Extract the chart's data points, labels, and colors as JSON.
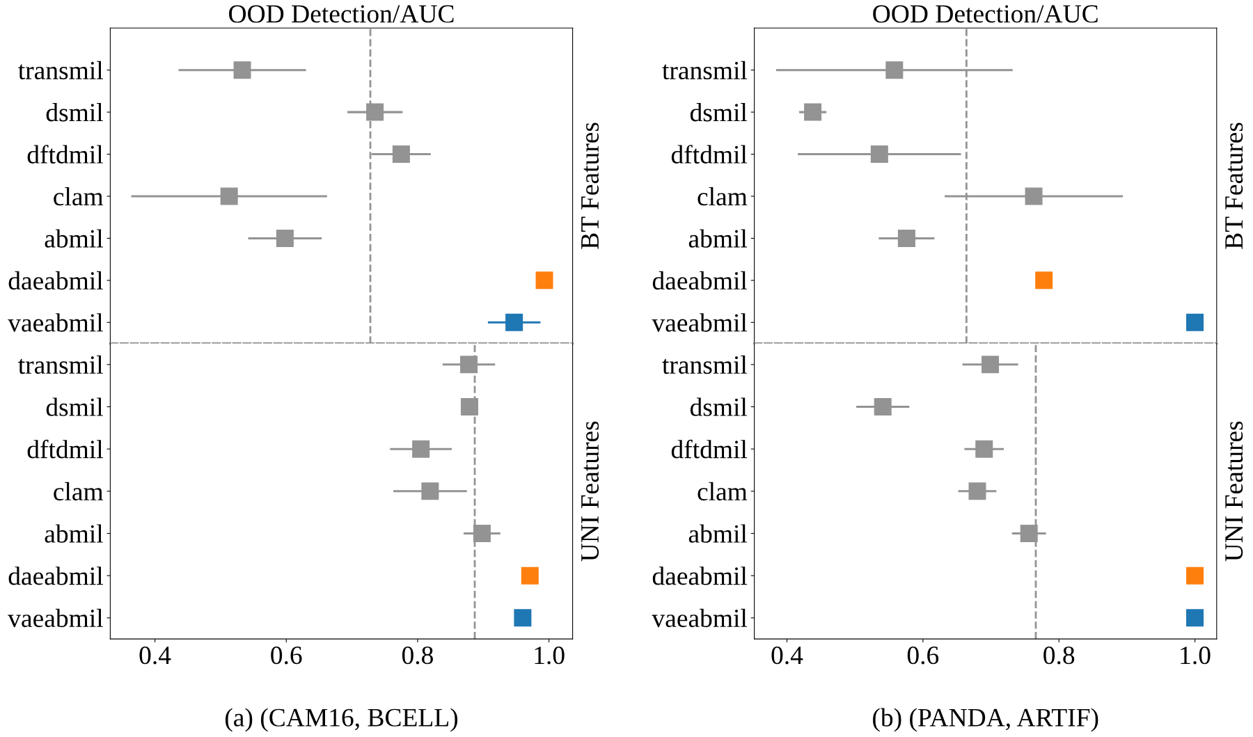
{
  "chart_data": [
    {
      "type": "scatter",
      "orientation": "horizontal",
      "title": "OOD Detection/AUC",
      "ylabel": "BT Features",
      "categories": [
        "transmil",
        "dsmil",
        "dftdmil",
        "clam",
        "abmil",
        "daeabmil",
        "vaeabmil"
      ],
      "values": [
        0.533,
        0.735,
        0.775,
        0.513,
        0.598,
        0.993,
        0.947
      ],
      "errors": [
        0.097,
        0.042,
        0.045,
        0.149,
        0.056,
        null,
        0.04
      ],
      "colors": [
        "#939393",
        "#939393",
        "#939393",
        "#939393",
        "#939393",
        "#ff7f0e",
        "#1f77b4"
      ],
      "marker": "square",
      "xlim": [
        0.332,
        1.036
      ],
      "tick_labels": "y",
      "ref_lines": [
        {
          "axis": "x",
          "value": 0.728,
          "color": "#939393",
          "line_style": "dashed"
        }
      ],
      "grid": false,
      "legend": false
    },
    {
      "type": "scatter",
      "orientation": "horizontal",
      "xlabel": "(a) (CAM16, BCELL)",
      "ylabel": "UNI Features",
      "categories": [
        "transmil",
        "dsmil",
        "dftdmil",
        "clam",
        "abmil",
        "daeabmil",
        "vaeabmil"
      ],
      "values": [
        0.878,
        0.879,
        0.805,
        0.819,
        0.898,
        0.971,
        0.96
      ],
      "errors": [
        0.04,
        null,
        0.047,
        0.056,
        0.028,
        null,
        null
      ],
      "colors": [
        "#939393",
        "#939393",
        "#939393",
        "#939393",
        "#939393",
        "#ff7f0e",
        "#1f77b4"
      ],
      "marker": "square",
      "xlim": [
        0.332,
        1.036
      ],
      "xticks": [
        {
          "value": 0.4,
          "label": "0.4"
        },
        {
          "value": 0.6,
          "label": "0.6"
        },
        {
          "value": 0.8,
          "label": "0.8"
        },
        {
          "value": 1.0,
          "label": "1.0"
        }
      ],
      "ref_lines": [
        {
          "axis": "x",
          "value": 0.887,
          "color": "#939393",
          "line_style": "dashed"
        }
      ],
      "grid": false,
      "legend": false
    },
    {
      "type": "scatter",
      "orientation": "horizontal",
      "title": "OOD Detection/AUC",
      "ylabel": "BT Features",
      "categories": [
        "transmil",
        "dsmil",
        "dftdmil",
        "clam",
        "abmil",
        "daeabmil",
        "vaeabmil"
      ],
      "values": [
        0.558,
        0.438,
        0.536,
        0.763,
        0.576,
        0.778,
        1.0
      ],
      "errors": [
        0.174,
        0.02,
        0.12,
        0.131,
        0.041,
        null,
        null
      ],
      "colors": [
        "#939393",
        "#939393",
        "#939393",
        "#939393",
        "#939393",
        "#ff7f0e",
        "#1f77b4"
      ],
      "marker": "square",
      "xlim": [
        0.352,
        1.032
      ],
      "tick_labels": "y",
      "ref_lines": [
        {
          "axis": "x",
          "value": 0.664,
          "color": "#939393",
          "line_style": "dashed"
        }
      ],
      "grid": false,
      "legend": false
    },
    {
      "type": "scatter",
      "orientation": "horizontal",
      "xlabel": "(b) (PANDA, ARTIF)",
      "ylabel": "UNI Features",
      "categories": [
        "transmil",
        "dsmil",
        "dftdmil",
        "clam",
        "abmil",
        "daeabmil",
        "vaeabmil"
      ],
      "values": [
        0.699,
        0.541,
        0.69,
        0.68,
        0.756,
        1.0,
        1.0
      ],
      "errors": [
        0.041,
        0.039,
        0.029,
        0.028,
        0.025,
        null,
        null
      ],
      "colors": [
        "#939393",
        "#939393",
        "#939393",
        "#939393",
        "#939393",
        "#ff7f0e",
        "#1f77b4"
      ],
      "marker": "square",
      "xlim": [
        0.352,
        1.032
      ],
      "xticks": [
        {
          "value": 0.4,
          "label": "0.4"
        },
        {
          "value": 0.6,
          "label": "0.6"
        },
        {
          "value": 0.8,
          "label": "0.8"
        },
        {
          "value": 1.0,
          "label": "1.0"
        }
      ],
      "ref_lines": [
        {
          "axis": "x",
          "value": 0.766,
          "color": "#939393",
          "line_style": "dashed"
        }
      ],
      "grid": false,
      "legend": false
    }
  ]
}
